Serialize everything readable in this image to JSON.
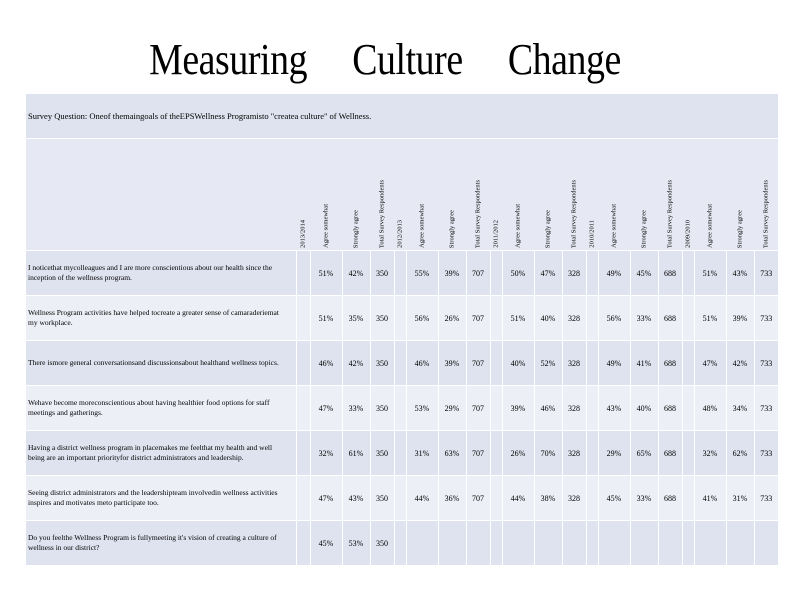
{
  "title": "Measuring Culture Change",
  "survey_question": "Survey Question:  Oneof themaingoals of theEPSWellness Programisto \"createa culture\" of Wellness.",
  "years": [
    {
      "label": "2013/2014",
      "agree": "Agree somewhat",
      "strong": "Strongly agree",
      "total": "Total Survey Respondents"
    },
    {
      "label": "2012/2013",
      "agree": "Agree somewhat",
      "strong": "Strongly agree",
      "total": "Total Survey Respondents"
    },
    {
      "label": "2011/2012",
      "agree": "Agree somewhat",
      "strong": "Strongly agree",
      "total": "Total Survey Respondents"
    },
    {
      "label": "2010/2011",
      "agree": "Agree somewhat",
      "strong": "Strongly agree",
      "total": "Total Survey Respondents"
    },
    {
      "label": "2009/2010",
      "agree": "Agree somewhat",
      "strong": "Strongly agree",
      "total": "Total Survey Respondents"
    }
  ],
  "rows": [
    {
      "q": "I noticethat   mycolleagues   and I are more conscientious   about  our health since  the  inception   of the  wellness  program.",
      "v": [
        [
          "51%",
          "42%",
          "350"
        ],
        [
          "55%",
          "39%",
          "707"
        ],
        [
          "50%",
          "47%",
          "328"
        ],
        [
          "49%",
          "45%",
          "688"
        ],
        [
          "51%",
          "43%",
          "733"
        ]
      ]
    },
    {
      "q": "Wellness  Program  activities  have helped  tocreate   a greater  sense  of camaraderiemat     my workplace.",
      "v": [
        [
          "51%",
          "35%",
          "350"
        ],
        [
          "56%",
          "26%",
          "707"
        ],
        [
          "51%",
          "40%",
          "328"
        ],
        [
          "56%",
          "33%",
          "688"
        ],
        [
          "51%",
          "39%",
          "733"
        ]
      ]
    },
    {
      "q": "There ismore general  conversationsand   discussionsabout    healthand wellness  topics.",
      "v": [
        [
          "46%",
          "42%",
          "350"
        ],
        [
          "46%",
          "39%",
          "707"
        ],
        [
          "40%",
          "52%",
          "328"
        ],
        [
          "49%",
          "41%",
          "688"
        ],
        [
          "47%",
          "42%",
          "733"
        ]
      ]
    },
    {
      "q": "Wehave  become  moreconscientious     about  having healthier  food options for staff meetings   and  gatherings.",
      "v": [
        [
          "47%",
          "33%",
          "350"
        ],
        [
          "53%",
          "29%",
          "707"
        ],
        [
          "39%",
          "46%",
          "328"
        ],
        [
          "43%",
          "40%",
          "688"
        ],
        [
          "48%",
          "34%",
          "733"
        ]
      ]
    },
    {
      "q": "Having  a district  wellness  program  in placemakes    me feelthat   my health and  well being  are  an important   priorityfor district administrators    and leadership.",
      "v": [
        [
          "32%",
          "61%",
          "350"
        ],
        [
          "31%",
          "63%",
          "707"
        ],
        [
          "26%",
          "70%",
          "328"
        ],
        [
          "29%",
          "65%",
          "688"
        ],
        [
          "32%",
          "62%",
          "733"
        ]
      ]
    },
    {
      "q": "Seeing  district administrators    and  the leadershipteam    involvedin wellness  activities  inspires  and motivates   meto participate    too.",
      "v": [
        [
          "47%",
          "43%",
          "350"
        ],
        [
          "44%",
          "36%",
          "707"
        ],
        [
          "44%",
          "38%",
          "328"
        ],
        [
          "45%",
          "33%",
          "688"
        ],
        [
          "41%",
          "31%",
          "733"
        ]
      ]
    },
    {
      "q": "Do you feelthe  Wellness  Program  is fullymeeting   it's vision of creating   a culture  of wellness   in our district?",
      "v": [
        [
          "45%",
          "53%",
          "350"
        ],
        [
          "",
          "",
          ""
        ],
        [
          "",
          "",
          ""
        ],
        [
          "",
          "",
          ""
        ],
        [
          "",
          "",
          ""
        ]
      ]
    }
  ]
}
